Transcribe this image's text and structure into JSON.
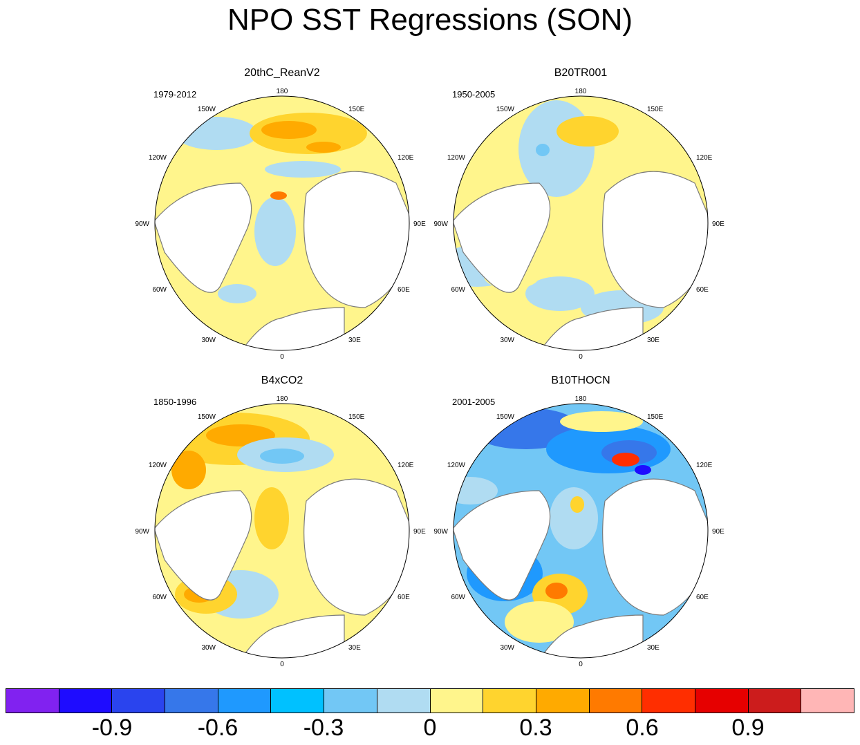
{
  "title": "NPO SST Regressions (SON)",
  "longitude_labels": [
    "180",
    "150E",
    "120E",
    "90E",
    "60E",
    "30E",
    "0",
    "30W",
    "60W",
    "90W",
    "120W",
    "150W"
  ],
  "panels": [
    {
      "title": "20thC_ReanV2",
      "period": "1979-2012"
    },
    {
      "title": "B20TR001",
      "period": "1950-2005"
    },
    {
      "title": "B4xCO2",
      "period": "1850-1996"
    },
    {
      "title": "B10THOCN",
      "period": "2001-2005"
    }
  ],
  "colorbar": {
    "colors": [
      "#8122f0",
      "#1e0cff",
      "#2a44ee",
      "#3677ea",
      "#1f99fe",
      "#00c1ff",
      "#72c7f5",
      "#b0dcf2",
      "#fff58c",
      "#ffd42e",
      "#ffaa00",
      "#ff7a00",
      "#ff2e00",
      "#e60000",
      "#cc1c1c",
      "#ffb6b6"
    ],
    "labels": [
      "-0.9",
      "-0.6",
      "-0.3",
      "0",
      "0.3",
      "0.6",
      "0.9"
    ]
  },
  "colors": {
    "land": "#ffffff",
    "coast": "#7a7a7a",
    "cold": "#b0dcf2",
    "warm": "#fff58c"
  }
}
